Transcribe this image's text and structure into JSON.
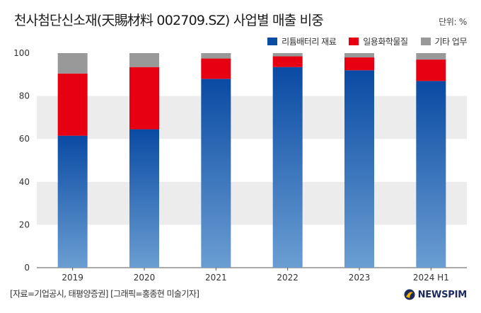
{
  "header": {
    "title": "천사첨단신소재(天賜材料 002709.SZ) 사업별 매출 비중",
    "unit": "단위: %"
  },
  "legend": [
    {
      "label": "리튬배터리 재료",
      "color": "#0b4da2"
    },
    {
      "label": "일용화학물질",
      "color": "#e60012"
    },
    {
      "label": "기타 업무",
      "color": "#999999"
    }
  ],
  "chart_data": {
    "type": "bar",
    "stacked": true,
    "categories": [
      "2019",
      "2020",
      "2021",
      "2022",
      "2023",
      "2024 H1"
    ],
    "series": [
      {
        "name": "리튬배터리 재료",
        "color": "#0b4da2",
        "values": [
          61.5,
          64.5,
          88.0,
          93.5,
          92.0,
          87.0
        ]
      },
      {
        "name": "일용화학물질",
        "color": "#e60012",
        "values": [
          29.0,
          29.0,
          9.5,
          5.0,
          6.0,
          10.0
        ]
      },
      {
        "name": "기타 업무",
        "color": "#999999",
        "values": [
          9.5,
          6.5,
          2.5,
          1.5,
          2.0,
          3.0
        ]
      }
    ],
    "ylim": [
      0,
      100
    ],
    "yticks": [
      0,
      20,
      40,
      60,
      80,
      100
    ],
    "grid": "banded",
    "legend_position": "top-right"
  },
  "footer": {
    "source": "[자료=기업공시, 태평양증권] [그래픽=홍종현 미술기자]",
    "brand": "NEWSPIM"
  }
}
